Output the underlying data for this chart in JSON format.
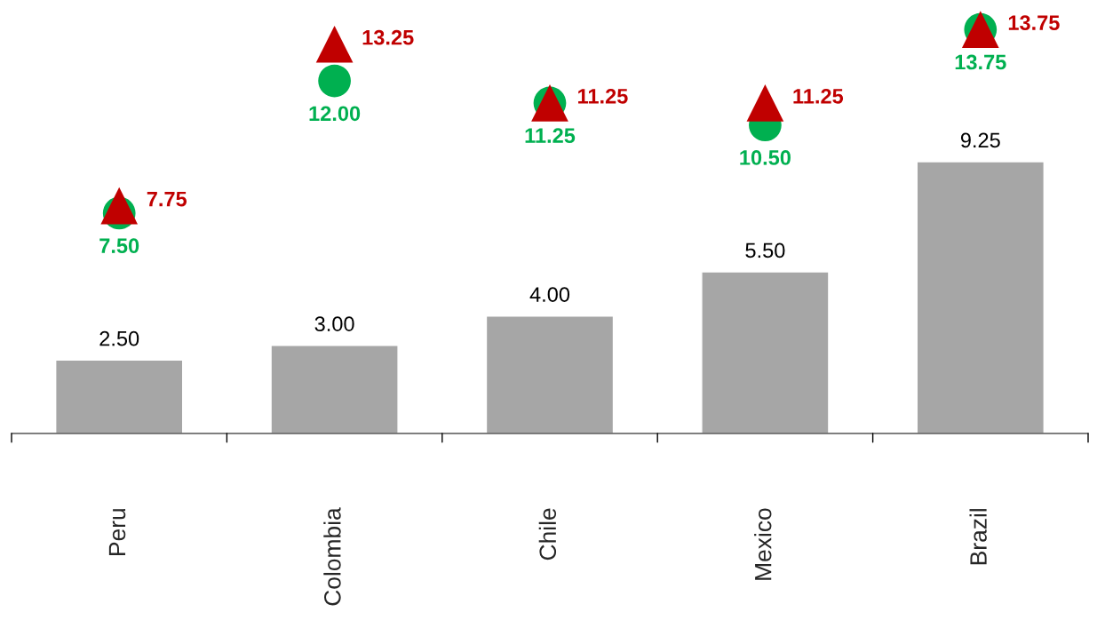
{
  "chart_data": {
    "type": "bar",
    "categories": [
      "Peru",
      "Colombia",
      "Chile",
      "Mexico",
      "Brazil"
    ],
    "series": [
      {
        "color": "#a6a6a6",
        "values": [
          2.5,
          3.0,
          4.0,
          5.5,
          9.25
        ],
        "value_labels": [
          "2.50",
          "3.00",
          "4.00",
          "5.50",
          "9.25"
        ]
      },
      {
        "type": "scatter",
        "marker": "circle",
        "color": "#00b050",
        "values": [
          7.5,
          12.0,
          11.25,
          10.5,
          13.75
        ],
        "value_labels": [
          "7.50",
          "12.00",
          "11.25",
          "10.50",
          "13.75"
        ]
      },
      {
        "type": "scatter",
        "marker": "triangle",
        "color": "#c00000",
        "values": [
          7.75,
          13.25,
          11.25,
          11.25,
          13.75
        ],
        "value_labels": [
          "7.75",
          "13.25",
          "11.25",
          "11.25",
          "13.75"
        ]
      }
    ],
    "grid": false,
    "legend": false
  }
}
